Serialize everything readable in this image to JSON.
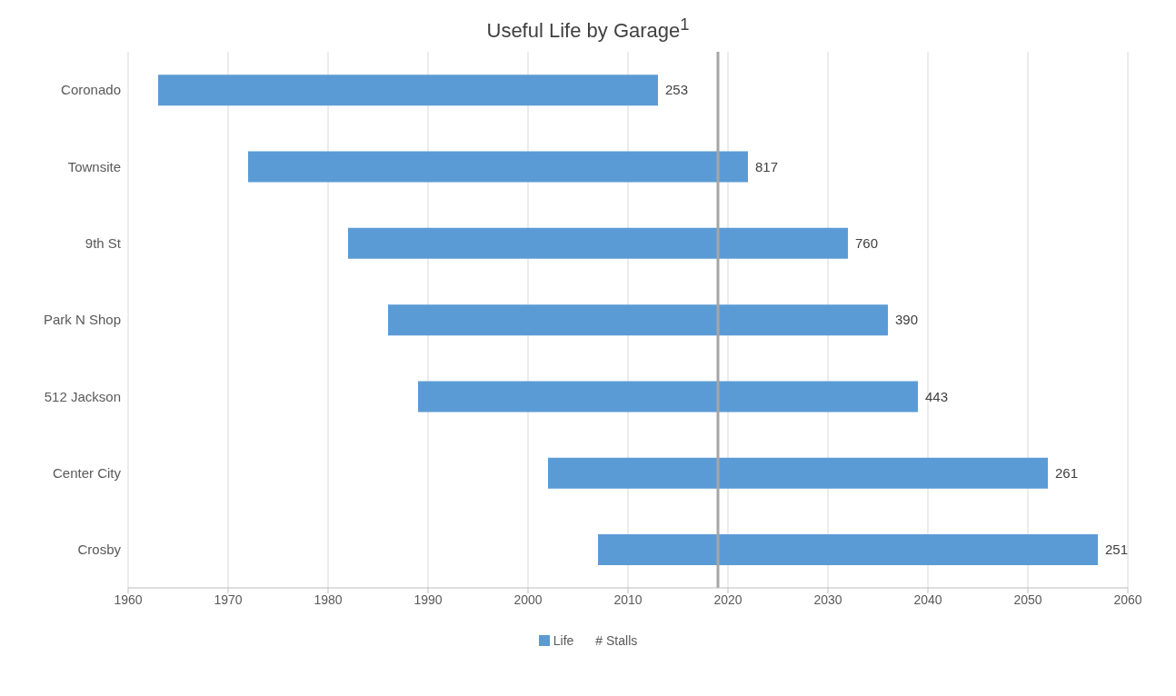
{
  "chart_data": {
    "type": "bar",
    "orientation": "horizontal",
    "title": "Useful Life by Garage$^{1}$",
    "categories": [
      "Coronado",
      "Townsite",
      "9th St",
      "Park N Shop",
      "512 Jackson",
      "Center City",
      "Crosby"
    ],
    "series": [
      {
        "name": "Life",
        "color": "#5b9bd5",
        "base": [
          1963,
          1972,
          1982,
          1986,
          1989,
          2002,
          2007
        ],
        "values": [
          50,
          50,
          50,
          50,
          50,
          50,
          50
        ]
      }
    ],
    "annotations": [
      "253",
      "817",
      "760",
      "390",
      "443",
      "261",
      "251",
      "# Stalls"
    ],
    "xlim": [
      1960,
      2060
    ],
    "xticks": [
      1960,
      1970,
      1980,
      1990,
      2000,
      2010,
      2020,
      2030,
      2040,
      2050,
      2060
    ],
    "ref_lines": [
      {
        "axis": "x",
        "value": 2019,
        "color": "#a6a6a6"
      }
    ],
    "grid": "x",
    "legend": "bottom"
  }
}
